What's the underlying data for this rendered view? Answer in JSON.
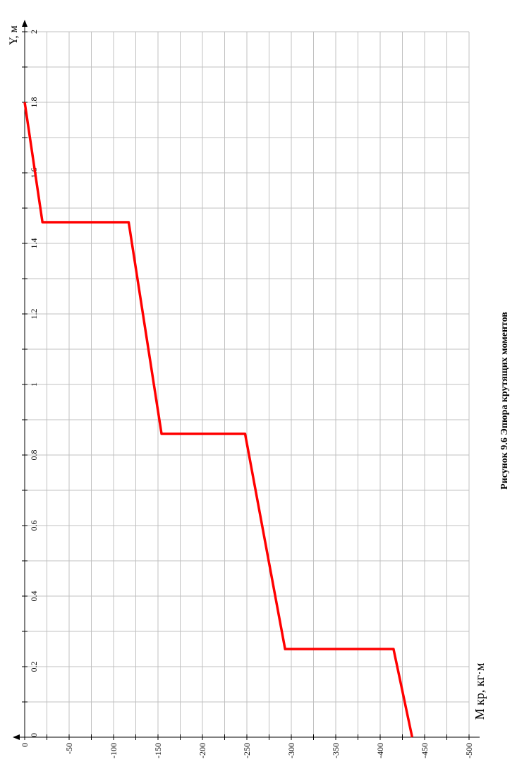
{
  "chart_data": {
    "type": "line",
    "title": "Рисунок 9.6 Эпюра крутящих моментов",
    "x_label": "M кр, кг·м",
    "y_label": "Y, м",
    "x": [
      0,
      -20,
      -117,
      -154,
      -248,
      -293,
      -415,
      -436
    ],
    "series": [
      {
        "color": "#ff0000",
        "values": [
          1.8,
          1.46,
          1.46,
          0.86,
          0.86,
          0.25,
          0.25,
          0
        ]
      }
    ],
    "xlim": [
      0,
      -500
    ],
    "ylim": [
      0,
      2
    ],
    "xticks": [
      0,
      -50,
      -100,
      -150,
      -200,
      -250,
      -300,
      -350,
      -400,
      -450,
      -500
    ],
    "yticks": [
      0,
      0.2,
      0.4,
      0.6,
      0.8,
      1,
      1.2,
      1.4,
      1.6,
      1.8,
      2
    ],
    "xminorticks": [
      -25,
      -75,
      -125,
      -175,
      -225,
      -275,
      -325,
      -375,
      -425,
      -475
    ],
    "yminorticks": [
      0.1,
      0.3,
      0.5,
      0.7,
      0.9,
      1.1,
      1.3,
      1.5,
      1.7,
      1.9
    ],
    "grid": true
  }
}
